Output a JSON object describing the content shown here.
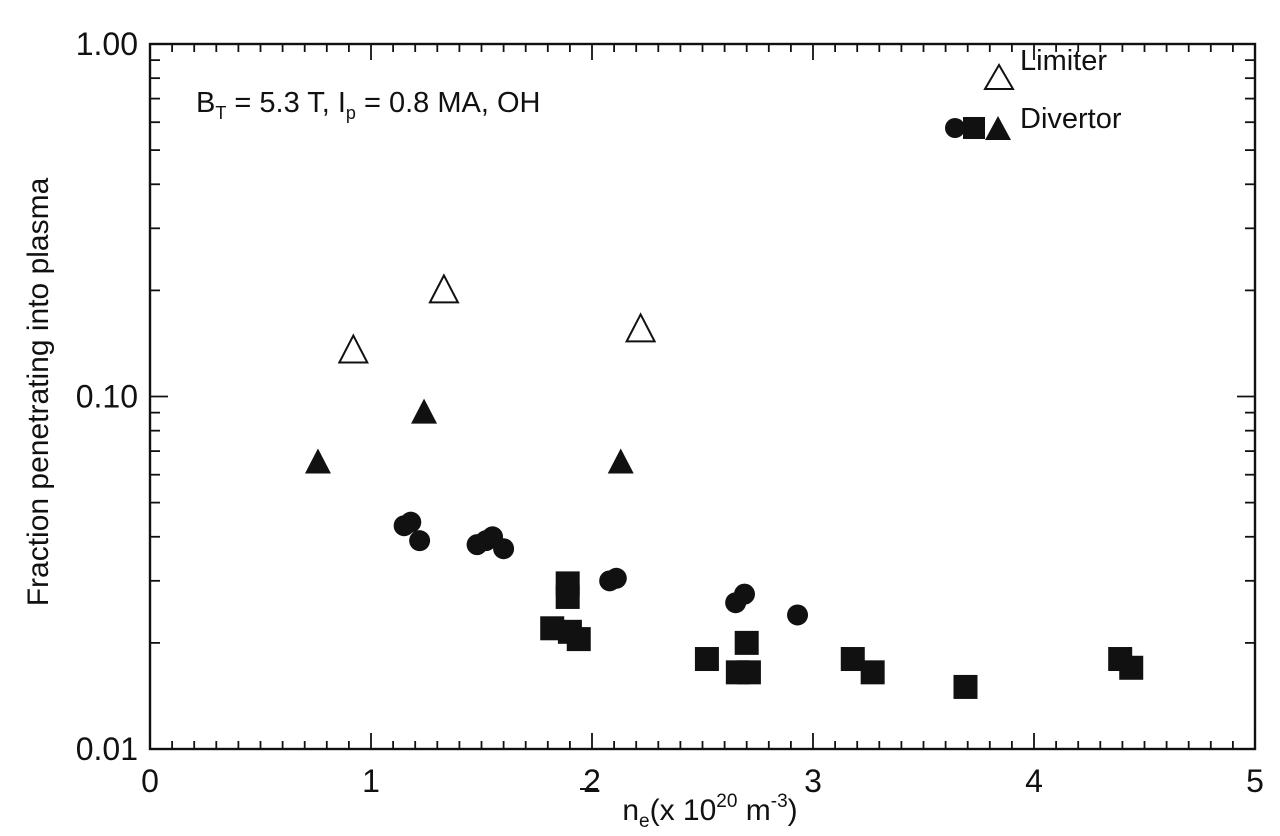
{
  "chart_data": {
    "type": "scatter",
    "xlabel": {
      "prefix": "n",
      "sub": "e",
      "middle": "(x 10",
      "sup1": "20",
      "unit": " m",
      "sup2": "-3",
      "suffix": ")"
    },
    "ylabel": "Fraction penetrating into plasma",
    "annotation": {
      "B": "B",
      "Bsub": "T",
      "mid": " = 5.3 T, I",
      "Isub": "p",
      "rest": " = 0.8 MA, OH"
    },
    "xlim": [
      0,
      5
    ],
    "ylim": [
      0.01,
      1.0
    ],
    "yscale": "log",
    "x_ticks": [
      {
        "value": 0,
        "label": "0"
      },
      {
        "value": 1,
        "label": "1"
      },
      {
        "value": 2,
        "label": "2"
      },
      {
        "value": 3,
        "label": "3"
      },
      {
        "value": 4,
        "label": "4"
      },
      {
        "value": 5,
        "label": "5"
      }
    ],
    "y_ticks": [
      {
        "value": 0.01,
        "label": "0.01"
      },
      {
        "value": 0.1,
        "label": "0.10"
      },
      {
        "value": 1.0,
        "label": "1.00"
      }
    ],
    "legend": {
      "position": "top-right",
      "entries": [
        {
          "label": "Limiter",
          "markers": [
            "triangle-open"
          ]
        },
        {
          "label": "Divertor",
          "markers": [
            "circle-filled",
            "square-filled",
            "triangle-filled"
          ]
        }
      ]
    },
    "series": [
      {
        "group": "Limiter",
        "marker": "triangle-open",
        "points": [
          [
            0.92,
            0.135
          ],
          [
            1.33,
            0.2
          ],
          [
            2.22,
            0.155
          ]
        ]
      },
      {
        "group": "Divertor",
        "marker": "triangle-filled",
        "points": [
          [
            0.76,
            0.065
          ],
          [
            1.24,
            0.09
          ],
          [
            2.13,
            0.065
          ]
        ]
      },
      {
        "group": "Divertor",
        "marker": "circle-filled",
        "points": [
          [
            1.15,
            0.043
          ],
          [
            1.18,
            0.044
          ],
          [
            1.22,
            0.039
          ],
          [
            1.48,
            0.038
          ],
          [
            1.52,
            0.039
          ],
          [
            1.55,
            0.04
          ],
          [
            1.6,
            0.037
          ],
          [
            2.08,
            0.03
          ],
          [
            2.11,
            0.0305
          ],
          [
            2.65,
            0.026
          ],
          [
            2.69,
            0.0275
          ],
          [
            2.93,
            0.024
          ]
        ]
      },
      {
        "group": "Divertor",
        "marker": "square-filled",
        "points": [
          [
            1.82,
            0.022
          ],
          [
            1.89,
            0.0295
          ],
          [
            1.89,
            0.027
          ],
          [
            1.9,
            0.0215
          ],
          [
            1.94,
            0.0205
          ],
          [
            2.52,
            0.018
          ],
          [
            2.66,
            0.0165
          ],
          [
            2.7,
            0.02
          ],
          [
            2.71,
            0.0165
          ],
          [
            3.18,
            0.018
          ],
          [
            3.27,
            0.0165
          ],
          [
            3.69,
            0.015
          ],
          [
            4.39,
            0.018
          ],
          [
            4.44,
            0.017
          ]
        ]
      }
    ]
  }
}
